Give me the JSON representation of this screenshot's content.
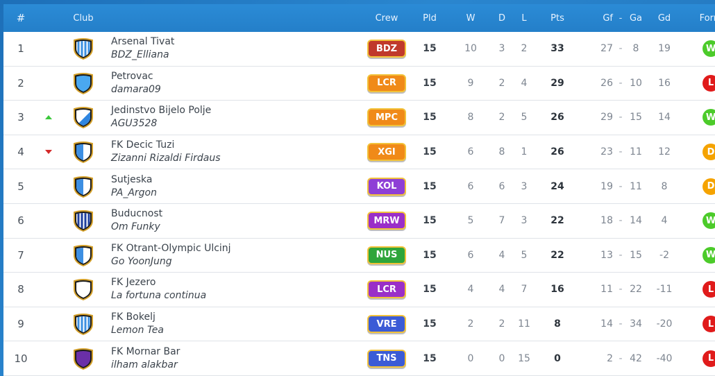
{
  "header": {
    "pos": "#",
    "club": "Club",
    "crew": "Crew",
    "pld": "Pld",
    "w": "W",
    "d": "D",
    "l": "L",
    "pts": "Pts",
    "gf": "Gf",
    "sep": "-",
    "ga": "Ga",
    "gd": "Gd",
    "form": "Form"
  },
  "rows": [
    {
      "pos": "1",
      "trend": "",
      "club": "Arsenal Tivat",
      "manager": "BDZ_Elliana",
      "crew": "BDZ",
      "crew_color": "#c0392b",
      "shield": "stripes",
      "pld": "15",
      "w": "10",
      "d": "3",
      "l": "2",
      "pts": "33",
      "gf": "27",
      "ga": "8",
      "gd": "19",
      "form": "W",
      "form_color": "#4ccb2a"
    },
    {
      "pos": "2",
      "trend": "",
      "club": "Petrovac",
      "manager": "damara09",
      "crew": "LCR",
      "crew_color": "#f08a18",
      "shield": "solid-blue",
      "pld": "15",
      "w": "9",
      "d": "2",
      "l": "4",
      "pts": "29",
      "gf": "26",
      "ga": "10",
      "gd": "16",
      "form": "L",
      "form_color": "#e01b1b"
    },
    {
      "pos": "3",
      "trend": "up",
      "club": "Jedinstvo Bijelo Polje",
      "manager": "AGU3528",
      "crew": "MPC",
      "crew_color": "#f08a18",
      "shield": "diagonal",
      "pld": "15",
      "w": "8",
      "d": "2",
      "l": "5",
      "pts": "26",
      "gf": "29",
      "ga": "15",
      "gd": "14",
      "form": "W",
      "form_color": "#4ccb2a"
    },
    {
      "pos": "4",
      "trend": "down",
      "club": "FK Decic Tuzi",
      "manager": "Zizanni Rizaldi Firdaus",
      "crew": "XGI",
      "crew_color": "#f08a18",
      "shield": "half",
      "pld": "15",
      "w": "6",
      "d": "8",
      "l": "1",
      "pts": "26",
      "gf": "23",
      "ga": "11",
      "gd": "12",
      "form": "D",
      "form_color": "#f5a300"
    },
    {
      "pos": "5",
      "trend": "",
      "club": "Sutjeska",
      "manager": "PA_Argon",
      "crew": "KOL",
      "crew_color": "#8e3fd6",
      "shield": "half",
      "pld": "15",
      "w": "6",
      "d": "6",
      "l": "3",
      "pts": "24",
      "gf": "19",
      "ga": "11",
      "gd": "8",
      "form": "D",
      "form_color": "#f5a300"
    },
    {
      "pos": "6",
      "trend": "",
      "club": "Buducnost",
      "manager": "Om Funky",
      "crew": "MRW",
      "crew_color": "#9a2fc8",
      "shield": "stripes-dark",
      "pld": "15",
      "w": "5",
      "d": "7",
      "l": "3",
      "pts": "22",
      "gf": "18",
      "ga": "14",
      "gd": "4",
      "form": "W",
      "form_color": "#4ccb2a"
    },
    {
      "pos": "7",
      "trend": "",
      "club": "FK Otrant-Olympic Ulcinj",
      "manager": "Go YoonJung",
      "crew": "NUS",
      "crew_color": "#2ea53a",
      "shield": "half",
      "pld": "15",
      "w": "6",
      "d": "4",
      "l": "5",
      "pts": "22",
      "gf": "13",
      "ga": "15",
      "gd": "-2",
      "form": "W",
      "form_color": "#4ccb2a"
    },
    {
      "pos": "8",
      "trend": "",
      "club": "FK Jezero",
      "manager": "La fortuna continua",
      "crew": "LCR",
      "crew_color": "#9a2fc8",
      "shield": "white",
      "pld": "15",
      "w": "4",
      "d": "4",
      "l": "7",
      "pts": "16",
      "gf": "11",
      "ga": "22",
      "gd": "-11",
      "form": "L",
      "form_color": "#e01b1b"
    },
    {
      "pos": "9",
      "trend": "",
      "club": "FK Bokelj",
      "manager": "Lemon Tea",
      "crew": "VRE",
      "crew_color": "#3b5bd6",
      "shield": "stripes",
      "pld": "15",
      "w": "2",
      "d": "2",
      "l": "11",
      "pts": "8",
      "gf": "14",
      "ga": "34",
      "gd": "-20",
      "form": "L",
      "form_color": "#e01b1b"
    },
    {
      "pos": "10",
      "trend": "",
      "club": "FK Mornar Bar",
      "manager": "ilham alakbar",
      "crew": "TNS",
      "crew_color": "#3b5bd6",
      "shield": "purple",
      "pld": "15",
      "w": "0",
      "d": "0",
      "l": "15",
      "pts": "0",
      "gf": "2",
      "ga": "42",
      "gd": "-40",
      "form": "L",
      "form_color": "#e01b1b"
    }
  ]
}
